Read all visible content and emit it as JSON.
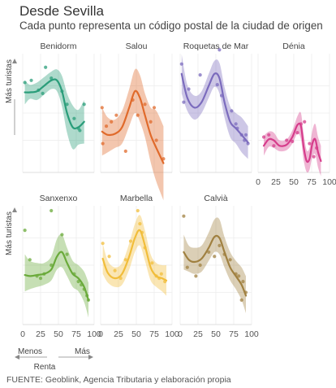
{
  "title": "Desde Sevilla",
  "subtitle": "Cada punto representa un código postal de la ciudad de origen",
  "source": "FUENTE: Geoblink, Agencia Tributaria y elaboración propia",
  "y_axis_label": "Más turistas",
  "x_axis_label": "Renta",
  "x_low_label": "Menos",
  "x_high_label": "Más",
  "chart_data": {
    "type": "scatter",
    "xlim": [
      0,
      100
    ],
    "x_ticks": [
      "0",
      "25",
      "50",
      "75",
      "100"
    ],
    "y_relative": true,
    "grid": true,
    "panels": [
      {
        "name": "Benidorm",
        "color": "#2a9d7a",
        "points": [
          [
            3,
            0.78
          ],
          [
            12,
            0.8
          ],
          [
            22,
            0.71
          ],
          [
            32,
            0.92
          ],
          [
            40,
            0.82
          ],
          [
            55,
            0.7
          ],
          [
            62,
            0.58
          ],
          [
            72,
            0.45
          ],
          [
            78,
            0.36
          ],
          [
            80,
            0.34
          ],
          [
            86,
            0.58
          ],
          [
            28,
            0.68
          ]
        ],
        "trend": [
          [
            3,
            0.69
          ],
          [
            10,
            0.69
          ],
          [
            20,
            0.7
          ],
          [
            30,
            0.75
          ],
          [
            40,
            0.8
          ],
          [
            48,
            0.8
          ],
          [
            55,
            0.7
          ],
          [
            62,
            0.5
          ],
          [
            70,
            0.37
          ],
          [
            78,
            0.37
          ],
          [
            86,
            0.42
          ]
        ],
        "band": [
          [
            3,
            0.8,
            0.58
          ],
          [
            10,
            0.76,
            0.63
          ],
          [
            20,
            0.78,
            0.62
          ],
          [
            30,
            0.83,
            0.67
          ],
          [
            40,
            0.88,
            0.72
          ],
          [
            48,
            0.9,
            0.7
          ],
          [
            55,
            0.84,
            0.56
          ],
          [
            62,
            0.68,
            0.32
          ],
          [
            70,
            0.57,
            0.17
          ],
          [
            78,
            0.53,
            0.21
          ],
          [
            86,
            0.62,
            0.22
          ]
        ]
      },
      {
        "name": "Salou",
        "color": "#e06a2b",
        "points": [
          [
            2,
            0.55
          ],
          [
            3,
            0.22
          ],
          [
            8,
            0.38
          ],
          [
            15,
            0.42
          ],
          [
            22,
            0.48
          ],
          [
            35,
            0.15
          ],
          [
            45,
            0.62
          ],
          [
            52,
            0.48
          ],
          [
            62,
            0.58
          ],
          [
            70,
            0.42
          ],
          [
            75,
            0.55
          ],
          [
            78,
            0.25
          ],
          [
            88,
            0.08
          ]
        ],
        "trend": [
          [
            2,
            0.33
          ],
          [
            10,
            0.3
          ],
          [
            20,
            0.31
          ],
          [
            30,
            0.37
          ],
          [
            40,
            0.55
          ],
          [
            48,
            0.7
          ],
          [
            55,
            0.64
          ],
          [
            62,
            0.48
          ],
          [
            70,
            0.3
          ],
          [
            78,
            0.18
          ],
          [
            88,
            0.04
          ]
        ],
        "band": [
          [
            2,
            0.55,
            0.11
          ],
          [
            10,
            0.46,
            0.14
          ],
          [
            20,
            0.44,
            0.18
          ],
          [
            30,
            0.52,
            0.22
          ],
          [
            40,
            0.72,
            0.38
          ],
          [
            48,
            0.9,
            0.5
          ],
          [
            55,
            0.85,
            0.42
          ],
          [
            62,
            0.68,
            0.28
          ],
          [
            70,
            0.55,
            0.05
          ],
          [
            78,
            0.52,
            -0.13
          ],
          [
            88,
            0.38,
            -0.3
          ]
        ]
      },
      {
        "name": "Roquetas de Mar",
        "color": "#7b6bbd",
        "points": [
          [
            2,
            0.95
          ],
          [
            5,
            0.6
          ],
          [
            12,
            0.72
          ],
          [
            28,
            0.85
          ],
          [
            55,
            1.08
          ],
          [
            52,
            0.76
          ],
          [
            58,
            0.66
          ],
          [
            72,
            0.52
          ],
          [
            78,
            0.4
          ],
          [
            80,
            0.36
          ],
          [
            86,
            0.3
          ],
          [
            90,
            0.25
          ],
          [
            95,
            0.22
          ],
          [
            92,
            0.3
          ]
        ],
        "trend": [
          [
            2,
            0.86
          ],
          [
            10,
            0.64
          ],
          [
            20,
            0.55
          ],
          [
            30,
            0.6
          ],
          [
            40,
            0.75
          ],
          [
            48,
            0.86
          ],
          [
            55,
            0.82
          ],
          [
            62,
            0.6
          ],
          [
            70,
            0.42
          ],
          [
            78,
            0.36
          ],
          [
            86,
            0.3
          ],
          [
            95,
            0.23
          ]
        ],
        "band": [
          [
            2,
            1.04,
            0.68
          ],
          [
            10,
            0.76,
            0.52
          ],
          [
            20,
            0.66,
            0.44
          ],
          [
            30,
            0.7,
            0.5
          ],
          [
            40,
            0.86,
            0.64
          ],
          [
            48,
            0.98,
            0.74
          ],
          [
            55,
            0.96,
            0.68
          ],
          [
            62,
            0.74,
            0.46
          ],
          [
            70,
            0.56,
            0.28
          ],
          [
            78,
            0.5,
            0.22
          ],
          [
            86,
            0.46,
            0.14
          ],
          [
            95,
            0.38,
            0.08
          ]
        ]
      },
      {
        "name": "Dénia",
        "color": "#d63c8b",
        "points": [
          [
            8,
            0.28
          ],
          [
            15,
            0.3
          ],
          [
            22,
            0.2
          ],
          [
            40,
            0.25
          ],
          [
            48,
            0.24
          ],
          [
            55,
            0.32
          ],
          [
            60,
            0.4
          ],
          [
            65,
            0.42
          ],
          [
            72,
            0.22
          ],
          [
            78,
            0.1
          ],
          [
            82,
            0.18
          ]
        ],
        "trend": [
          [
            8,
            0.2
          ],
          [
            15,
            0.26
          ],
          [
            22,
            0.25
          ],
          [
            30,
            0.2
          ],
          [
            40,
            0.21
          ],
          [
            48,
            0.28
          ],
          [
            55,
            0.39
          ],
          [
            60,
            0.38
          ],
          [
            64,
            0.18
          ],
          [
            68,
            0.06
          ],
          [
            72,
            0.08
          ],
          [
            76,
            0.22
          ],
          [
            80,
            0.26
          ],
          [
            84,
            0.14
          ],
          [
            88,
            0.06
          ]
        ],
        "band": [
          [
            8,
            0.29,
            0.11
          ],
          [
            15,
            0.33,
            0.19
          ],
          [
            22,
            0.32,
            0.18
          ],
          [
            30,
            0.25,
            0.15
          ],
          [
            40,
            0.26,
            0.16
          ],
          [
            48,
            0.34,
            0.22
          ],
          [
            55,
            0.47,
            0.31
          ],
          [
            60,
            0.5,
            0.26
          ],
          [
            64,
            0.3,
            0.06
          ],
          [
            68,
            0.16,
            -0.04
          ],
          [
            72,
            0.18,
            -0.02
          ],
          [
            76,
            0.34,
            0.1
          ],
          [
            80,
            0.4,
            0.12
          ],
          [
            84,
            0.28,
            0.0
          ],
          [
            88,
            0.2,
            -0.08
          ]
        ]
      },
      {
        "name": "Sanxenxo",
        "color": "#6aaa3a",
        "points": [
          [
            3,
            0.82
          ],
          [
            10,
            0.55
          ],
          [
            20,
            0.4
          ],
          [
            25,
            0.38
          ],
          [
            30,
            0.42
          ],
          [
            40,
            0.5
          ],
          [
            55,
            0.78
          ],
          [
            62,
            0.6
          ],
          [
            72,
            0.42
          ],
          [
            78,
            0.35
          ],
          [
            82,
            0.32
          ],
          [
            86,
            0.28
          ],
          [
            90,
            0.22
          ],
          [
            92,
            0.18
          ],
          [
            40,
            1.0
          ]
        ],
        "trend": [
          [
            3,
            0.41
          ],
          [
            10,
            0.4
          ],
          [
            20,
            0.41
          ],
          [
            30,
            0.42
          ],
          [
            40,
            0.46
          ],
          [
            48,
            0.58
          ],
          [
            55,
            0.62
          ],
          [
            62,
            0.52
          ],
          [
            70,
            0.42
          ],
          [
            78,
            0.38
          ],
          [
            86,
            0.3
          ],
          [
            92,
            0.18
          ]
        ],
        "band": [
          [
            3,
            0.6,
            0.26
          ],
          [
            10,
            0.54,
            0.28
          ],
          [
            20,
            0.52,
            0.3
          ],
          [
            30,
            0.52,
            0.32
          ],
          [
            40,
            0.58,
            0.36
          ],
          [
            48,
            0.74,
            0.46
          ],
          [
            55,
            0.78,
            0.48
          ],
          [
            62,
            0.66,
            0.4
          ],
          [
            70,
            0.54,
            0.3
          ],
          [
            78,
            0.5,
            0.26
          ],
          [
            86,
            0.44,
            0.16
          ],
          [
            92,
            0.34,
            0.02
          ]
        ]
      },
      {
        "name": "Marbella",
        "color": "#f1bd3a",
        "points": [
          [
            3,
            0.7
          ],
          [
            12,
            0.58
          ],
          [
            20,
            0.45
          ],
          [
            28,
            0.38
          ],
          [
            35,
            0.55
          ],
          [
            42,
            0.72
          ],
          [
            52,
            1.0
          ],
          [
            55,
            0.88
          ],
          [
            58,
            0.8
          ],
          [
            62,
            0.66
          ],
          [
            72,
            0.52
          ],
          [
            78,
            0.4
          ],
          [
            82,
            0.38
          ],
          [
            85,
            0.42
          ],
          [
            90,
            0.35
          ]
        ],
        "trend": [
          [
            3,
            0.56
          ],
          [
            10,
            0.43
          ],
          [
            20,
            0.38
          ],
          [
            30,
            0.42
          ],
          [
            40,
            0.58
          ],
          [
            48,
            0.75
          ],
          [
            55,
            0.82
          ],
          [
            62,
            0.68
          ],
          [
            70,
            0.48
          ],
          [
            78,
            0.4
          ],
          [
            86,
            0.38
          ],
          [
            92,
            0.36
          ]
        ],
        "band": [
          [
            3,
            0.7,
            0.42
          ],
          [
            10,
            0.54,
            0.34
          ],
          [
            20,
            0.48,
            0.3
          ],
          [
            30,
            0.52,
            0.32
          ],
          [
            40,
            0.7,
            0.46
          ],
          [
            48,
            0.88,
            0.62
          ],
          [
            55,
            0.96,
            0.68
          ],
          [
            62,
            0.82,
            0.54
          ],
          [
            70,
            0.6,
            0.36
          ],
          [
            78,
            0.52,
            0.3
          ],
          [
            86,
            0.5,
            0.26
          ],
          [
            92,
            0.5,
            0.22
          ]
        ]
      },
      {
        "name": "Calvià",
        "color": "#a08040",
        "points": [
          [
            5,
            0.95
          ],
          [
            10,
            0.48
          ],
          [
            22,
            0.4
          ],
          [
            28,
            0.5
          ],
          [
            40,
            0.62
          ],
          [
            48,
            0.58
          ],
          [
            55,
            0.68
          ],
          [
            62,
            0.6
          ],
          [
            70,
            0.55
          ],
          [
            78,
            0.42
          ],
          [
            82,
            0.4
          ],
          [
            88,
            0.35
          ],
          [
            92,
            0.25
          ],
          [
            86,
            0.18
          ]
        ],
        "trend": [
          [
            5,
            0.62
          ],
          [
            12,
            0.55
          ],
          [
            20,
            0.53
          ],
          [
            30,
            0.56
          ],
          [
            40,
            0.66
          ],
          [
            48,
            0.76
          ],
          [
            55,
            0.75
          ],
          [
            62,
            0.62
          ],
          [
            70,
            0.48
          ],
          [
            78,
            0.4
          ],
          [
            86,
            0.32
          ],
          [
            92,
            0.22
          ]
        ],
        "band": [
          [
            5,
            0.78,
            0.46
          ],
          [
            12,
            0.68,
            0.44
          ],
          [
            20,
            0.66,
            0.42
          ],
          [
            30,
            0.68,
            0.44
          ],
          [
            40,
            0.8,
            0.54
          ],
          [
            48,
            0.92,
            0.62
          ],
          [
            55,
            0.92,
            0.6
          ],
          [
            62,
            0.76,
            0.48
          ],
          [
            70,
            0.62,
            0.36
          ],
          [
            78,
            0.54,
            0.28
          ],
          [
            86,
            0.48,
            0.18
          ],
          [
            92,
            0.4,
            0.06
          ]
        ]
      }
    ]
  }
}
